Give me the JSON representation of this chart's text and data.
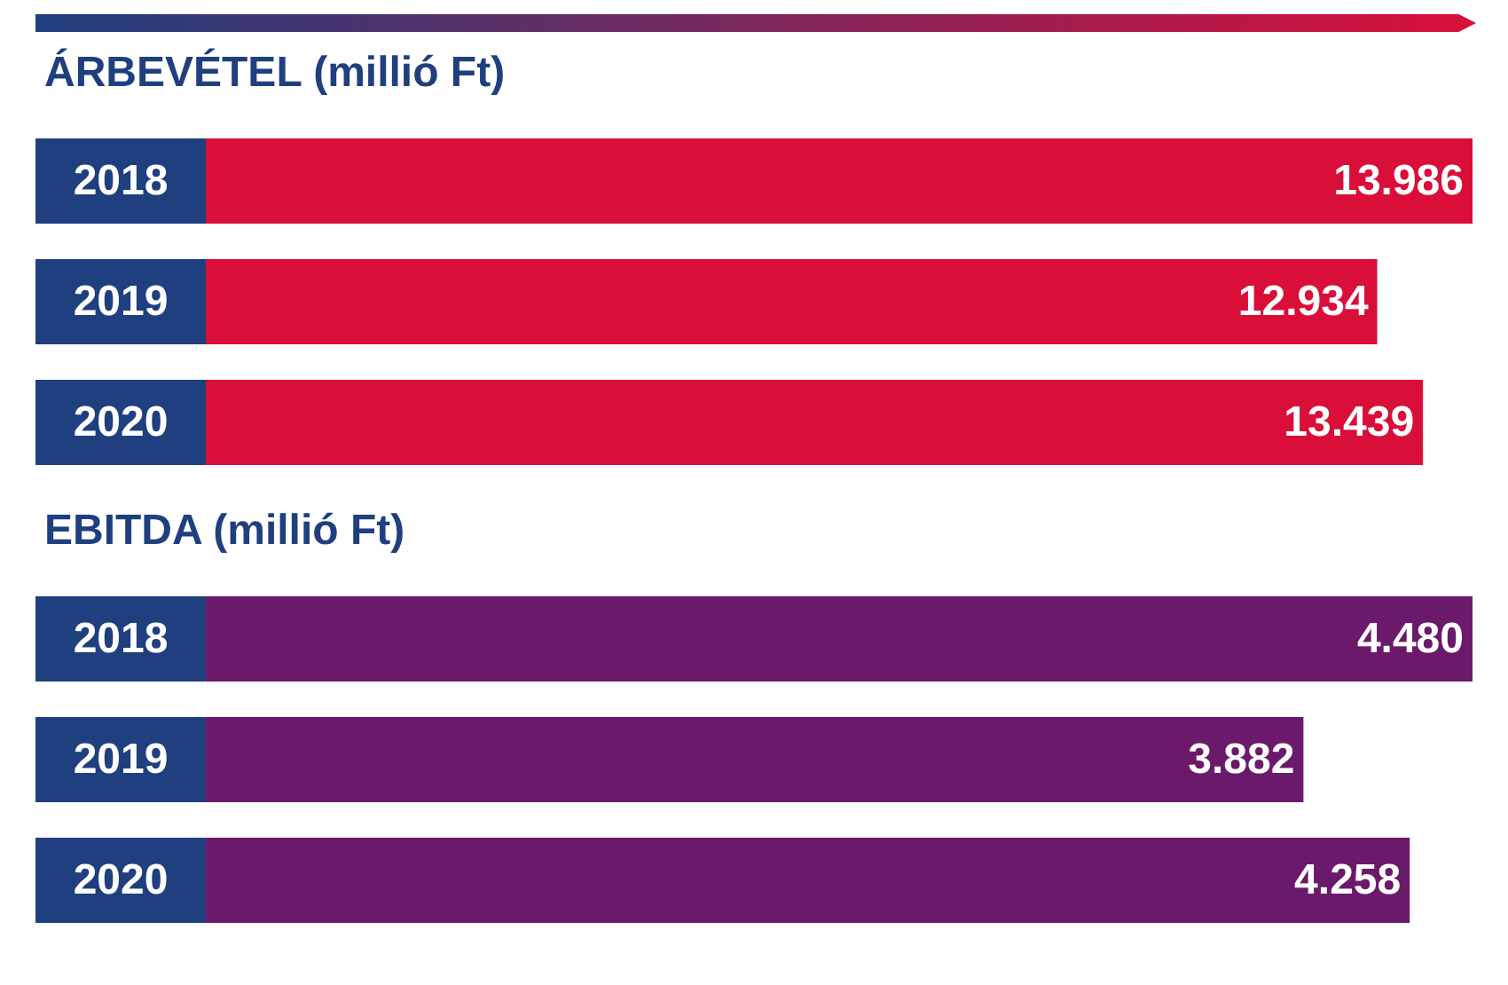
{
  "chart_data": [
    {
      "type": "bar",
      "orientation": "horizontal",
      "title": "ÁRBEVÉTEL (millió Ft)",
      "categories": [
        "2018",
        "2019",
        "2020"
      ],
      "values": [
        13986,
        12934,
        13439
      ],
      "value_labels": [
        "13.986",
        "12.934",
        "13.439"
      ],
      "color": "#d90f3a",
      "tick_labels": "y",
      "grid": false
    },
    {
      "type": "bar",
      "orientation": "horizontal",
      "title": "EBITDA (millió Ft)",
      "categories": [
        "2018",
        "2019",
        "2020"
      ],
      "values": [
        4480,
        3882,
        4258
      ],
      "value_labels": [
        "4.480",
        "3.882",
        "4.258"
      ],
      "color": "#6b1a6b",
      "tick_labels": "y",
      "grid": false
    }
  ]
}
